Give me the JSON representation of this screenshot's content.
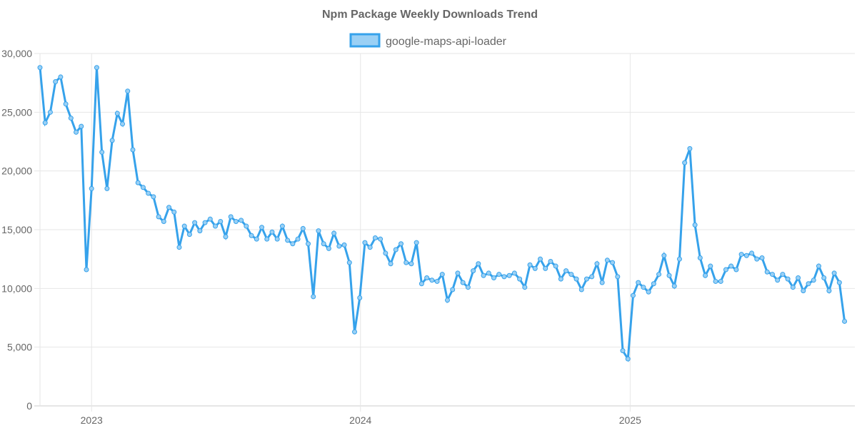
{
  "chart_data": {
    "type": "line",
    "title": "Npm Package Weekly Downloads Trend",
    "xlabel": "",
    "ylabel": "",
    "ylim": [
      0,
      30000
    ],
    "yticks": [
      0,
      5000,
      10000,
      15000,
      20000,
      25000,
      30000
    ],
    "ytick_labels": [
      "0",
      "5,000",
      "10,000",
      "15,000",
      "20,000",
      "25,000",
      "30,000"
    ],
    "xlim_weeks": [
      0,
      158
    ],
    "xticks": [
      {
        "label": "2023",
        "week": 10
      },
      {
        "label": "2024",
        "week": 62.14
      },
      {
        "label": "2025",
        "week": 114.43
      }
    ],
    "grid": true,
    "legend": "top-center",
    "series": [
      {
        "name": "google-maps-api-loader",
        "color": "#36a2eb",
        "fill": "#9ad0f5",
        "values": [
          28800,
          24100,
          25000,
          27600,
          28000,
          25700,
          24500,
          23300,
          23800,
          11600,
          18500,
          28800,
          21600,
          18500,
          22600,
          24900,
          24000,
          26800,
          21800,
          19000,
          18600,
          18100,
          17800,
          16100,
          15700,
          16900,
          16500,
          13500,
          15300,
          14600,
          15600,
          14900,
          15600,
          15900,
          15300,
          15700,
          14400,
          16100,
          15700,
          15800,
          15300,
          14500,
          14200,
          15200,
          14200,
          14800,
          14200,
          15300,
          14100,
          13800,
          14200,
          15100,
          13800,
          9300,
          14900,
          13800,
          13400,
          14700,
          13600,
          13700,
          12200,
          6300,
          9200,
          13900,
          13500,
          14300,
          14200,
          13000,
          12100,
          13300,
          13800,
          12200,
          12100,
          13900,
          10400,
          10900,
          10700,
          10600,
          11200,
          9000,
          9900,
          11300,
          10500,
          10100,
          11500,
          12100,
          11100,
          11300,
          10900,
          11200,
          11000,
          11100,
          11300,
          10800,
          10100,
          12000,
          11700,
          12500,
          11700,
          12300,
          11900,
          10800,
          11500,
          11200,
          10800,
          9900,
          10800,
          11000,
          12100,
          10500,
          12400,
          12200,
          11000,
          4700,
          4000,
          9400,
          10500,
          10100,
          9700,
          10400,
          11200,
          12800,
          11100,
          10200,
          12500,
          20700,
          21900,
          15400,
          12600,
          11100,
          11900,
          10600,
          10600,
          11600,
          11900,
          11600,
          12900,
          12800,
          13000,
          12500,
          12600,
          11400,
          11200,
          10700,
          11200,
          10800,
          10100,
          10900,
          9800,
          10400,
          10700,
          11900,
          10900,
          9800,
          11300,
          10500,
          7200
        ]
      }
    ]
  }
}
